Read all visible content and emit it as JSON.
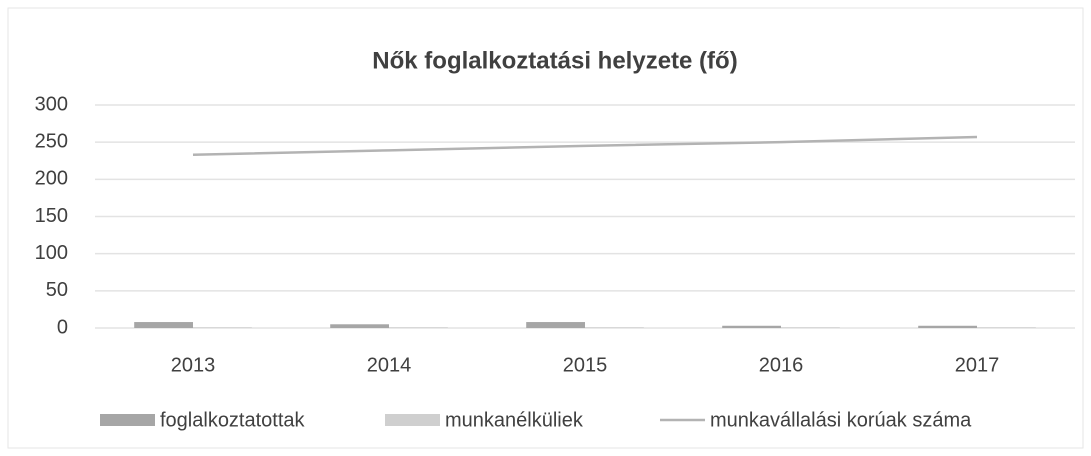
{
  "chart_data": {
    "type": "bar",
    "title": "Nők foglalkoztatási helyzete (fő)",
    "categories": [
      "2013",
      "2014",
      "2015",
      "2016",
      "2017"
    ],
    "series": [
      {
        "name": "foglalkoztatottak",
        "type": "bar",
        "color": "#a6a6a6",
        "values": [
          8,
          5,
          8,
          3,
          3
        ]
      },
      {
        "name": "munkanélküliek",
        "type": "bar",
        "color": "#cfcfcf",
        "values": [
          1,
          1,
          1,
          1,
          1
        ]
      },
      {
        "name": "munkavállalási korúak száma",
        "type": "line",
        "color": "#b3b3b3",
        "values": [
          233,
          239,
          245,
          250,
          257
        ]
      }
    ],
    "ylim": [
      0,
      300
    ],
    "yticks": [
      0,
      50,
      100,
      150,
      200,
      250,
      300
    ],
    "grid": true,
    "legend": "bottom"
  }
}
